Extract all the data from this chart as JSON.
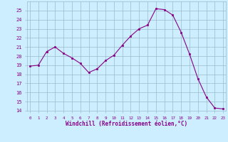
{
  "x": [
    0,
    1,
    2,
    3,
    4,
    5,
    6,
    7,
    8,
    9,
    10,
    11,
    12,
    13,
    14,
    15,
    16,
    17,
    18,
    19,
    20,
    21,
    22,
    23
  ],
  "y": [
    18.9,
    19.0,
    20.5,
    21.0,
    20.3,
    19.8,
    19.2,
    18.2,
    18.6,
    19.5,
    20.1,
    21.2,
    22.2,
    23.0,
    23.4,
    25.2,
    25.1,
    24.5,
    22.6,
    20.2,
    17.5,
    15.5,
    14.3,
    14.2
  ],
  "ylim": [
    14,
    26
  ],
  "yticks": [
    14,
    15,
    16,
    17,
    18,
    19,
    20,
    21,
    22,
    23,
    24,
    25
  ],
  "xlabel": "Windchill (Refroidissement éolien,°C)",
  "line_color": "#880088",
  "marker_color": "#880088",
  "bg_color": "#cceeff",
  "grid_color": "#99bbcc",
  "tick_color": "#880088",
  "label_color": "#880088"
}
